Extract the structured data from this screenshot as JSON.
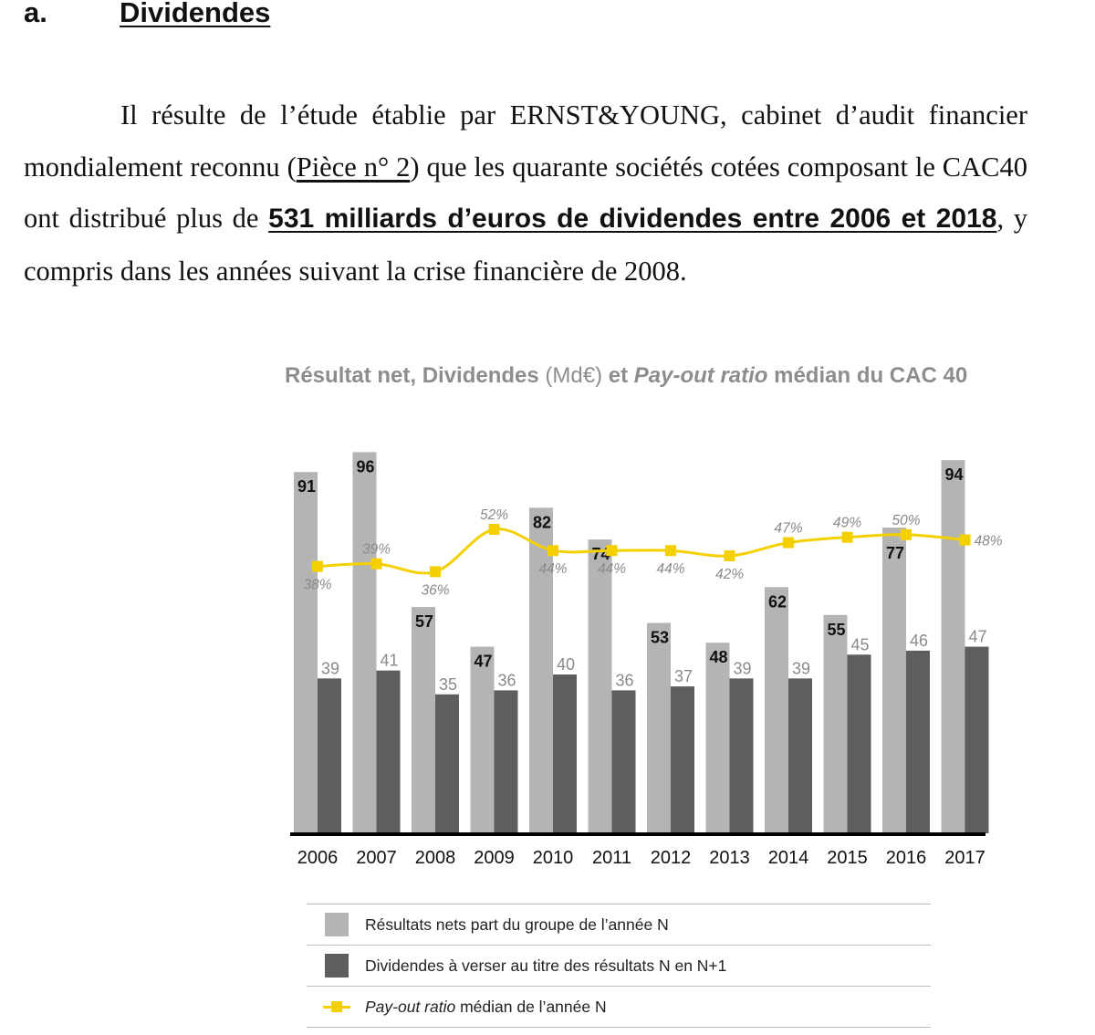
{
  "section": {
    "number": "a.",
    "title": "Dividendes"
  },
  "paragraph": {
    "part1": "Il résulte de l’étude établie par ERNST&YOUNG, cabinet d’audit financier mondialement reconnu (",
    "ref": "Pièce n° 2",
    "part2": ") que les quarante sociétés cotées composant le CAC40 ont distribué plus de ",
    "highlight": "531 milliards d’euros de dividendes entre 2006 et 2018",
    "part3": ", y compris dans les années suivant la crise financière de 2008."
  },
  "chart_title": {
    "part1": "Résultat net, Dividendes ",
    "unit": "(Md€)",
    "part2": " et ",
    "italic": "Pay-out ratio",
    "part3": " médian du CAC 40"
  },
  "chart_data": {
    "type": "bar",
    "categories": [
      "2006",
      "2007",
      "2008",
      "2009",
      "2010",
      "2011",
      "2012",
      "2013",
      "2014",
      "2015",
      "2016",
      "2017"
    ],
    "series": [
      {
        "name": "Résultats nets part du groupe de l’année N",
        "type": "bar",
        "color": "#b4b4b4",
        "values": [
          91,
          96,
          57,
          47,
          82,
          74,
          53,
          48,
          62,
          55,
          77,
          94
        ],
        "labels": [
          "91",
          "96",
          "57",
          "47",
          "82",
          "74",
          "53",
          "48",
          "62",
          "55",
          "77",
          "94"
        ]
      },
      {
        "name": "Dividendes à verser au titre des résultats N en N+1",
        "type": "bar",
        "color": "#5e5e5e",
        "values": [
          39,
          41,
          35,
          36,
          40,
          36,
          37,
          39,
          39,
          45,
          46,
          47
        ],
        "labels": [
          "39",
          "41",
          "35",
          "36",
          "40",
          "36",
          "37",
          "39",
          "39",
          "45",
          "46",
          "47"
        ]
      },
      {
        "name": "Pay-out ratio médian de l’année N",
        "type": "line",
        "color": "#f5d000",
        "values": [
          38,
          39,
          36,
          52,
          44,
          44,
          44,
          42,
          47,
          49,
          50,
          48
        ],
        "labels": [
          "38%",
          "39%",
          "36%",
          "52%",
          "44%",
          "44%",
          "44%",
          "42%",
          "47%",
          "49%",
          "50%",
          "48%"
        ]
      }
    ],
    "grid": false,
    "legend_position": "bottom"
  },
  "legend": {
    "net_label": "Résultats nets part du groupe de l’année N",
    "div_label": "Dividendes à verser au titre des résultats N en N+1",
    "ratio_italic": "Pay-out ratio",
    "ratio_rest": " médian de l’année N"
  }
}
